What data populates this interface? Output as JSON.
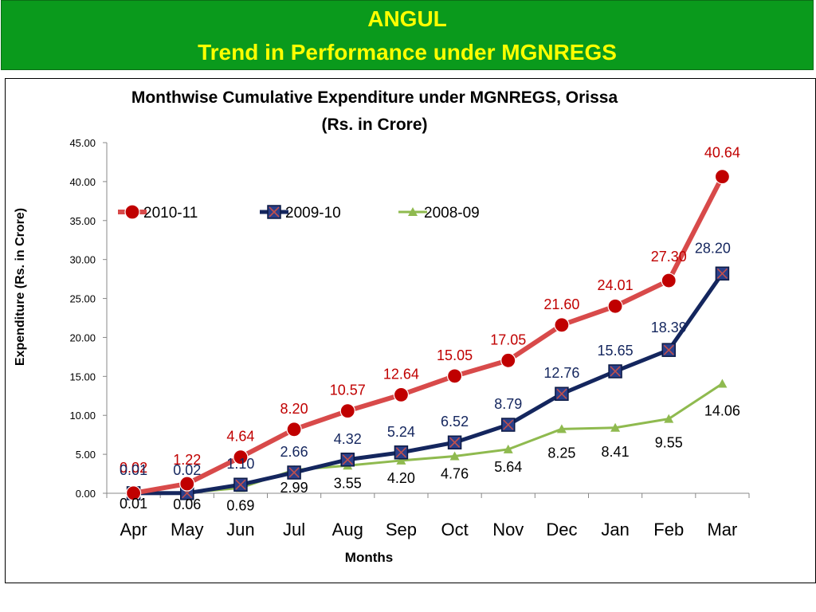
{
  "header": {
    "line1": "ANGUL",
    "line2": "Trend in Performance under MGNREGS"
  },
  "chart_data": {
    "type": "line",
    "title_line1": "Monthwise Cumulative Expenditure under MGNREGS, Orissa",
    "title_line2": "(Rs. in Crore)",
    "xlabel": "Months",
    "ylabel": "Expenditure (Rs. in Crore)",
    "ylim": [
      0,
      45
    ],
    "yticks": [
      "0.00",
      "5.00",
      "10.00",
      "15.00",
      "20.00",
      "25.00",
      "30.00",
      "35.00",
      "40.00",
      "45.00"
    ],
    "categories": [
      "Apr",
      "May",
      "Jun",
      "Jul",
      "Aug",
      "Sep",
      "Oct",
      "Nov",
      "Dec",
      "Jan",
      "Feb",
      "Mar"
    ],
    "legend_position": "top-left",
    "series": [
      {
        "name": "2010-11",
        "color": "#d84a4a",
        "marker_color": "#c00000",
        "label_color": "#c00000",
        "values": [
          0.02,
          1.22,
          4.64,
          8.2,
          10.57,
          12.64,
          15.05,
          17.05,
          21.6,
          24.01,
          27.3,
          40.64
        ],
        "labels": [
          "0.02",
          "1.22",
          "4.64",
          "8.20",
          "10.57",
          "12.64",
          "15.05",
          "17.05",
          "21.60",
          "24.01",
          "27.30",
          "40.64"
        ]
      },
      {
        "name": "2009-10",
        "color": "#14265e",
        "marker_color": "#2a3f8a",
        "label_color": "#14265e",
        "values": [
          0.01,
          0.02,
          1.1,
          2.66,
          4.32,
          5.24,
          6.52,
          8.79,
          12.76,
          15.65,
          18.39,
          28.2
        ],
        "labels": [
          "0.01",
          "0.02",
          "1.10",
          "2.66",
          "4.32",
          "5.24",
          "6.52",
          "8.79",
          "12.76",
          "15.65",
          "18.39",
          "28.20"
        ]
      },
      {
        "name": "2008-09",
        "color": "#8fba4f",
        "marker_color": "#8fba4f",
        "label_color": "#000000",
        "values": [
          0.01,
          0.06,
          0.69,
          2.99,
          3.55,
          4.2,
          4.76,
          5.64,
          8.25,
          8.41,
          9.55,
          14.06
        ],
        "labels": [
          "0.01",
          "0.06",
          "0.69",
          "2.99",
          "3.55",
          "4.20",
          "4.76",
          "5.64",
          "8.25",
          "8.41",
          "9.55",
          "14.06"
        ]
      }
    ]
  }
}
